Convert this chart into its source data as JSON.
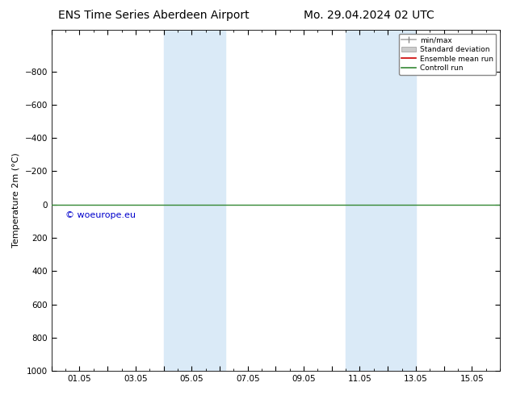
{
  "title_left": "ENS Time Series Aberdeen Airport",
  "title_right": "Mo. 29.04.2024 02 UTC",
  "ylabel": "Temperature 2m (°C)",
  "watermark": "© woeurope.eu",
  "xlim": [
    0,
    16
  ],
  "ylim": [
    1000,
    -1050
  ],
  "yticks": [
    -800,
    -600,
    -400,
    -200,
    0,
    200,
    400,
    600,
    800,
    1000
  ],
  "xtick_labels": [
    "",
    "01.05",
    "",
    "03.05",
    "",
    "05.05",
    "",
    "07.05",
    "",
    "09.05",
    "",
    "11.05",
    "",
    "13.05",
    "",
    "15.05"
  ],
  "xtick_positions": [
    0,
    1,
    2,
    3,
    4,
    5,
    6,
    7,
    8,
    9,
    10,
    11,
    12,
    13,
    14,
    15
  ],
  "shaded_regions": [
    {
      "xmin": 4.0,
      "xmax": 5.5,
      "color": "#daeaf7"
    },
    {
      "xmin": 5.5,
      "xmax": 6.2,
      "color": "#daeaf7"
    },
    {
      "xmin": 10.5,
      "xmax": 11.5,
      "color": "#daeaf7"
    },
    {
      "xmin": 11.5,
      "xmax": 13.0,
      "color": "#daeaf7"
    }
  ],
  "control_run_y": 0,
  "control_run_color": "#338833",
  "ensemble_mean_color": "#cc0000",
  "background_color": "#ffffff",
  "plot_bg_color": "#ffffff",
  "title_fontsize": 10,
  "axis_fontsize": 8,
  "tick_fontsize": 7.5,
  "watermark_color": "#0000cc",
  "watermark_fontsize": 8
}
